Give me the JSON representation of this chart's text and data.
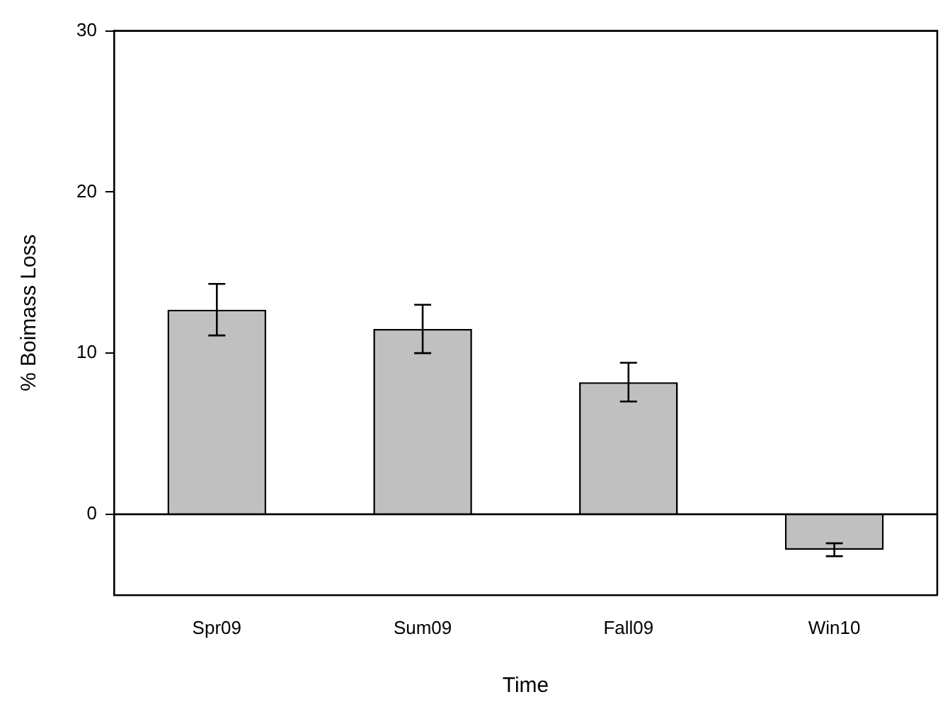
{
  "chart_data": {
    "type": "bar",
    "xlabel": "Time",
    "ylabel": "% Boimass Loss",
    "categories": [
      "Spr09",
      "Sum09",
      "Fall09",
      "Win10"
    ],
    "values": [
      12.7,
      11.5,
      8.2,
      -2.2
    ],
    "errors": [
      1.6,
      1.5,
      1.2,
      0.4
    ],
    "color": "#c0c0c0",
    "ylim": [
      -5,
      30
    ],
    "yticks": [
      0,
      10,
      20,
      30
    ],
    "ref_lines": [
      {
        "axis": "y",
        "value": 0,
        "color": "#000000"
      }
    ],
    "grid": false,
    "legend": false
  }
}
